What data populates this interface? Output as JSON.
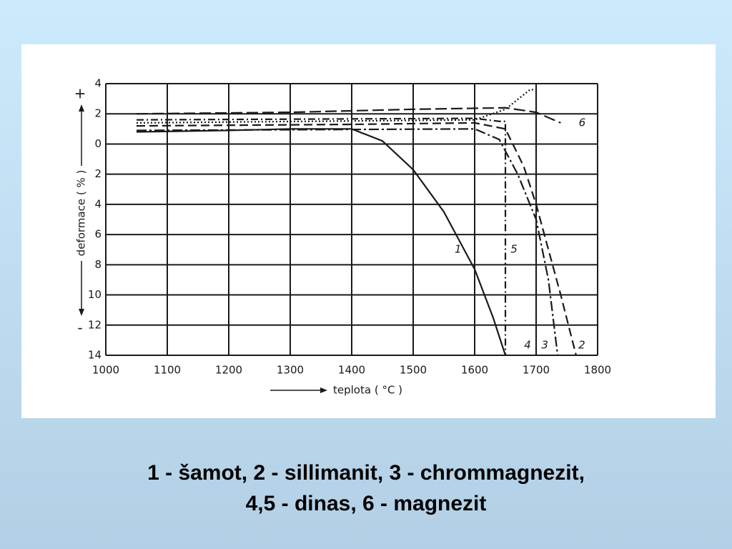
{
  "chart_data": {
    "type": "line",
    "xlabel": "teplota ( °C )",
    "ylabel": "deformace ( % )",
    "ylabel_plus": "+",
    "ylabel_minus": "-",
    "xlim": [
      1000,
      1800
    ],
    "xticks": [
      1000,
      1100,
      1200,
      1300,
      1400,
      1500,
      1600,
      1700,
      1800
    ],
    "ylim": [
      -14,
      4
    ],
    "yticks": [
      4,
      2,
      0,
      {
        "value": -2,
        "label": "2"
      },
      {
        "value": -4,
        "label": "4"
      },
      {
        "value": -6,
        "label": "6"
      },
      {
        "value": -8,
        "label": "8"
      },
      {
        "value": -10,
        "label": "10"
      },
      {
        "value": -12,
        "label": "12"
      },
      {
        "value": -14,
        "label": "14"
      }
    ],
    "grid": true,
    "series": [
      {
        "name": "1",
        "color": "#1a1a1a",
        "style": "solid",
        "x": [
          1050,
          1200,
          1300,
          1400,
          1450,
          1500,
          1550,
          1600,
          1630,
          1650
        ],
        "values": [
          0.8,
          0.9,
          1.0,
          1.0,
          0.2,
          -1.7,
          -4.5,
          -8.3,
          -11.5,
          -14
        ]
      },
      {
        "name": "2",
        "color": "#1a1a1a",
        "style": "dashed",
        "x": [
          1050,
          1400,
          1600,
          1650,
          1680,
          1700,
          1720,
          1740,
          1765
        ],
        "values": [
          1.2,
          1.3,
          1.4,
          1.0,
          -1.5,
          -4,
          -7,
          -10,
          -14
        ]
      },
      {
        "name": "3",
        "color": "#1a1a1a",
        "style": "longdashdot",
        "x": [
          1050,
          1600,
          1640,
          1670,
          1700,
          1720,
          1735
        ],
        "values": [
          0.9,
          1.0,
          0.3,
          -2,
          -5,
          -9,
          -14
        ]
      },
      {
        "name": "4",
        "color": "#1a1a1a",
        "style": "dotted",
        "x": [
          1050,
          1600,
          1650,
          1690,
          1700,
          1700
        ],
        "values": [
          1.4,
          1.6,
          2.3,
          3.6,
          3.6,
          -14
        ]
      },
      {
        "name": "5",
        "color": "#1a1a1a",
        "style": "dashdot",
        "x": [
          1050,
          1600,
          1640,
          1650,
          1650
        ],
        "values": [
          1.6,
          1.7,
          1.5,
          1.5,
          -14
        ]
      },
      {
        "name": "6",
        "color": "#1a1a1a",
        "style": "longdash",
        "x": [
          1050,
          1300,
          1500,
          1650,
          1700,
          1740
        ],
        "values": [
          2.0,
          2.1,
          2.3,
          2.4,
          2.1,
          1.4
        ]
      }
    ]
  },
  "caption": {
    "line1": "1 - šamot, 2 - sillimanit, 3 - chrommagnezit,",
    "line2": "4,5 - dinas, 6 - magnezit"
  }
}
